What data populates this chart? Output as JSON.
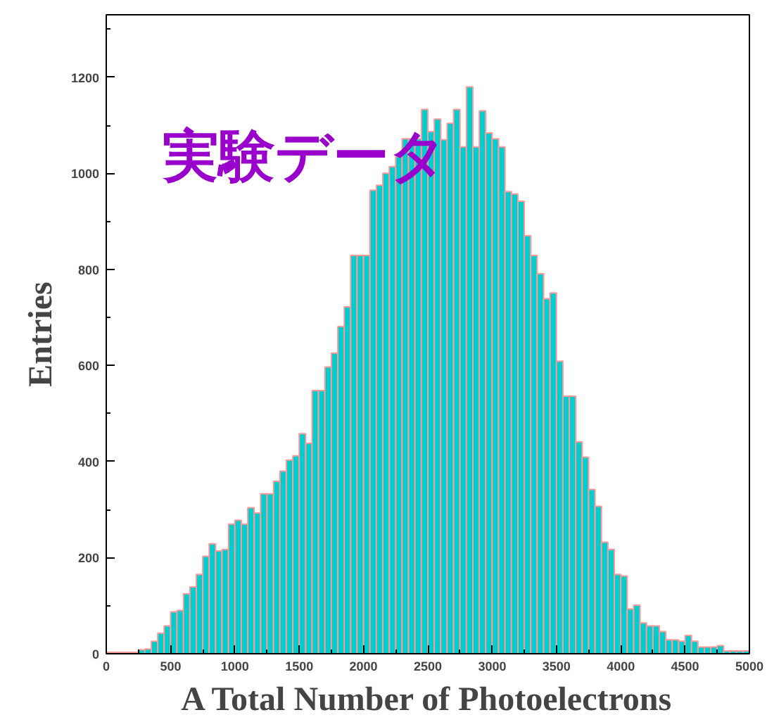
{
  "chart_data": {
    "type": "histogram",
    "xlabel": "A Total Number of Photoelectrons",
    "ylabel": "Entries",
    "annotations": [
      "実験データ"
    ],
    "bins": [
      0,
      50,
      100,
      150,
      200,
      250,
      300,
      350,
      400,
      450,
      500,
      550,
      600,
      650,
      700,
      750,
      800,
      850,
      900,
      950,
      1000,
      1050,
      1100,
      1150,
      1200,
      1250,
      1300,
      1350,
      1400,
      1450,
      1500,
      1550,
      1600,
      1650,
      1700,
      1750,
      1800,
      1850,
      1900,
      1950,
      2000,
      2050,
      2100,
      2150,
      2200,
      2250,
      2300,
      2350,
      2400,
      2450,
      2500,
      2550,
      2600,
      2650,
      2700,
      2750,
      2800,
      2850,
      2900,
      2950,
      3000,
      3050,
      3100,
      3150,
      3200,
      3250,
      3300,
      3350,
      3400,
      3450,
      3500,
      3550,
      3600,
      3650,
      3700,
      3750,
      3800,
      3850,
      3900,
      3950,
      4000,
      4050,
      4100,
      4150,
      4200,
      4250,
      4300,
      4350,
      4400,
      4450,
      4500,
      4550,
      4600,
      4650,
      4700,
      4750,
      4800,
      4850,
      4900,
      4950,
      5000
    ],
    "values": [
      3,
      3,
      3,
      3,
      3,
      8,
      10,
      26,
      43,
      58,
      87,
      90,
      125,
      139,
      165,
      203,
      229,
      214,
      217,
      270,
      278,
      270,
      304,
      293,
      333,
      333,
      359,
      380,
      403,
      412,
      458,
      438,
      548,
      548,
      597,
      626,
      681,
      722,
      829,
      829,
      829,
      965,
      975,
      1000,
      1014,
      1035,
      1072,
      1072,
      1072,
      1133,
      1087,
      1113,
      1070,
      1104,
      1133,
      1055,
      1180,
      1055,
      1130,
      1084,
      1072,
      1055,
      962,
      957,
      942,
      870,
      829,
      791,
      739,
      751,
      609,
      536,
      536,
      441,
      409,
      342,
      307,
      232,
      217,
      165,
      162,
      93,
      101,
      64,
      58,
      58,
      46,
      29,
      29,
      26,
      38,
      26,
      14,
      14,
      14,
      17,
      6,
      6,
      6,
      6
    ],
    "color": "#00cdcd",
    "xlim": [
      0,
      5000
    ],
    "ylim": [
      0,
      1330
    ],
    "xticks": [
      0,
      500,
      1000,
      1500,
      2000,
      2500,
      3000,
      3500,
      4000,
      4500,
      5000
    ],
    "yticks": [
      0,
      200,
      400,
      600,
      800,
      1000,
      1200
    ],
    "grid": false
  }
}
